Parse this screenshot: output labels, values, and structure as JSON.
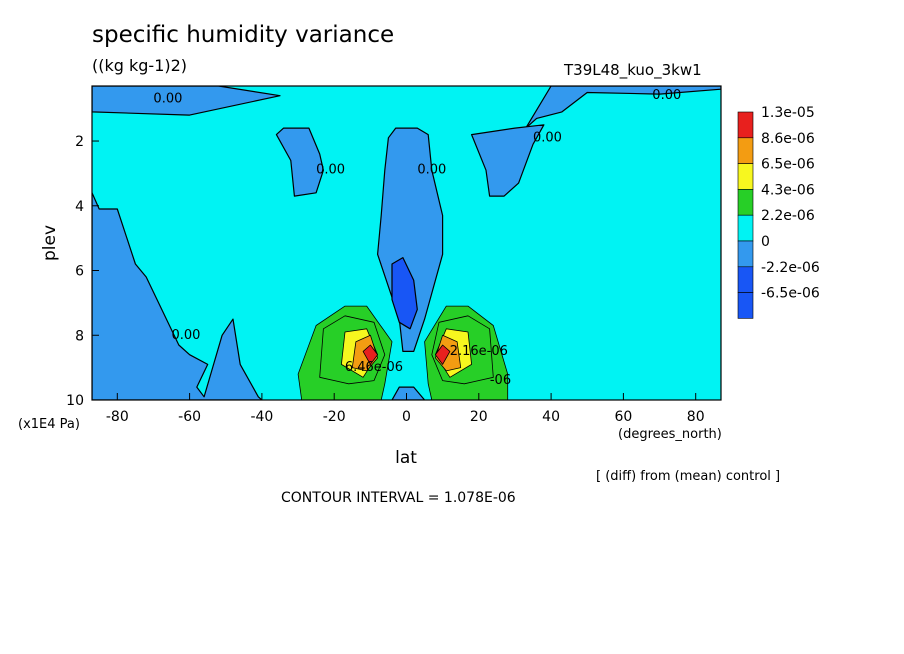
{
  "title": "specific humidity variance",
  "units": "((kg kg-1)2)",
  "run_name": "T39L48_kuo_3kw1",
  "subtitle": "[ (diff) from (mean) control ]",
  "contour_note": "CONTOUR INTERVAL = 1.078E-06",
  "colors": {
    "red": "#e8201e",
    "orange": "#f39c12",
    "yellow": "#f7f71f",
    "green": "#27cf27",
    "cyan": "#00f3f3",
    "blue_light": "#3399ee",
    "blue_dark": "#1856f5"
  },
  "chart_data": {
    "type": "filled-contour",
    "xlabel": "lat",
    "xunits": "(degrees_north)",
    "ylabel": "plev",
    "yunits": "(x1E4 Pa)",
    "xlim": [
      -87,
      87
    ],
    "ylim": [
      10,
      0.3
    ],
    "xticks": [
      -80,
      -60,
      -40,
      -20,
      0,
      20,
      40,
      60,
      80
    ],
    "yticks": [
      2,
      4,
      6,
      8,
      10
    ],
    "legend_position": "right",
    "legend": [
      {
        "label": "1.3e-05",
        "color": "#e8201e"
      },
      {
        "label": "8.6e-06",
        "color": "#f39c12"
      },
      {
        "label": "6.5e-06",
        "color": "#f7f71f"
      },
      {
        "label": "4.3e-06",
        "color": "#27cf27"
      },
      {
        "label": "2.2e-06",
        "color": "#00f3f3"
      },
      {
        "label": "0",
        "color": "#3399ee"
      },
      {
        "label": "-2.2e-06",
        "color": "#1856f5"
      },
      {
        "label": "-6.5e-06",
        "color": ""
      }
    ],
    "contour_labels": [
      {
        "text": "0.00",
        "lat": -66,
        "plev": 0.7
      },
      {
        "text": "0.00",
        "lat": 72,
        "plev": 0.6
      },
      {
        "text": "0.00",
        "lat": 39,
        "plev": 1.9
      },
      {
        "text": "0.00",
        "lat": -21,
        "plev": 2.9
      },
      {
        "text": "0.00",
        "lat": 7,
        "plev": 2.9
      },
      {
        "text": "0.00",
        "lat": -61,
        "plev": 8.0
      },
      {
        "text": "2.16e-06",
        "lat": 20,
        "plev": 8.5
      },
      {
        "text": "6.46e-06",
        "lat": -9,
        "plev": 9.0
      },
      {
        "text": "-06",
        "lat": 26,
        "plev": 9.4
      }
    ],
    "regions": [
      {
        "value": 0,
        "points": [
          [
            -87,
            0.3
          ],
          [
            -87,
            1.1
          ],
          [
            -60,
            1.2
          ],
          [
            -35,
            0.6
          ],
          [
            -52,
            0.3
          ]
        ]
      },
      {
        "value": 0,
        "points": [
          [
            40,
            0.3
          ],
          [
            87,
            0.3
          ],
          [
            87,
            0.4
          ],
          [
            70,
            0.55
          ],
          [
            50,
            0.5
          ],
          [
            43,
            1.1
          ],
          [
            36,
            1.3
          ],
          [
            33,
            1.6
          ]
        ]
      },
      {
        "value": 0,
        "points": [
          [
            -87,
            3.6
          ],
          [
            -85,
            4.1
          ],
          [
            -80,
            4.1
          ],
          [
            -75,
            5.8
          ],
          [
            -72,
            6.2
          ],
          [
            -66,
            7.6
          ],
          [
            -63,
            8.3
          ],
          [
            -60,
            8.6
          ],
          [
            -55,
            8.9
          ],
          [
            -58,
            9.6
          ],
          [
            -56,
            9.9
          ],
          [
            -51,
            8.0
          ],
          [
            -48,
            7.5
          ],
          [
            -46,
            8.9
          ],
          [
            -41,
            9.9
          ],
          [
            -40,
            10
          ],
          [
            -87,
            10
          ]
        ]
      },
      {
        "value": 0,
        "points": [
          [
            -34,
            1.6
          ],
          [
            -27,
            1.6
          ],
          [
            -24,
            2.4
          ],
          [
            -23,
            2.9
          ],
          [
            -25,
            3.6
          ],
          [
            -31,
            3.7
          ],
          [
            -32,
            2.6
          ],
          [
            -36,
            1.8
          ]
        ]
      },
      {
        "value": 0,
        "points": [
          [
            30,
            1.6
          ],
          [
            38,
            1.5
          ],
          [
            35,
            2.1
          ],
          [
            31,
            3.3
          ],
          [
            27,
            3.7
          ],
          [
            23,
            3.7
          ],
          [
            22,
            2.9
          ],
          [
            18,
            1.8
          ]
        ]
      },
      {
        "value": 0,
        "points": [
          [
            -5,
            1.9
          ],
          [
            -3,
            1.6
          ],
          [
            3,
            1.6
          ],
          [
            6,
            1.8
          ],
          [
            7,
            2.9
          ],
          [
            10,
            4.3
          ],
          [
            10,
            5.5
          ],
          [
            5,
            7.5
          ],
          [
            2,
            8.5
          ],
          [
            -1,
            8.5
          ],
          [
            -2,
            7.5
          ],
          [
            -8,
            5.5
          ],
          [
            -7,
            4.3
          ],
          [
            -6,
            2.9
          ]
        ]
      },
      {
        "value": -6.5e-06,
        "points": [
          [
            -4,
            5.8
          ],
          [
            -1,
            5.6
          ],
          [
            2,
            6.3
          ],
          [
            3,
            7.2
          ],
          [
            1,
            7.8
          ],
          [
            -2,
            7.6
          ],
          [
            -4,
            6.9
          ]
        ]
      },
      {
        "value": 2.2e-06,
        "points": [
          [
            -29,
            10
          ],
          [
            -30,
            9.2
          ],
          [
            -25,
            7.7
          ],
          [
            -17,
            7.1
          ],
          [
            -11,
            7.1
          ],
          [
            -4,
            8.2
          ],
          [
            -6,
            9.5
          ],
          [
            -7,
            10
          ]
        ]
      },
      {
        "value": 2.2e-06,
        "points": [
          [
            7,
            10
          ],
          [
            6,
            9.5
          ],
          [
            5,
            8.2
          ],
          [
            11,
            7.1
          ],
          [
            17,
            7.1
          ],
          [
            24,
            7.7
          ],
          [
            28,
            9.2
          ],
          [
            28,
            10
          ]
        ]
      },
      {
        "value": 4.3e-06,
        "points": [
          [
            -24,
            9.3
          ],
          [
            -23,
            7.8
          ],
          [
            -17,
            7.4
          ],
          [
            -9,
            7.6
          ],
          [
            -6,
            8.6
          ],
          [
            -9,
            9.4
          ],
          [
            -16,
            9.5
          ]
        ]
      },
      {
        "value": 4.3e-06,
        "points": [
          [
            7,
            8.6
          ],
          [
            9,
            7.6
          ],
          [
            17,
            7.4
          ],
          [
            23,
            7.8
          ],
          [
            24,
            9.3
          ],
          [
            16,
            9.5
          ],
          [
            10,
            9.4
          ]
        ]
      },
      {
        "value": 6.5e-06,
        "points": [
          [
            -18,
            8.9
          ],
          [
            -17,
            7.9
          ],
          [
            -11,
            7.8
          ],
          [
            -8,
            8.6
          ],
          [
            -12,
            9.3
          ]
        ]
      },
      {
        "value": 6.5e-06,
        "points": [
          [
            8,
            8.6
          ],
          [
            11,
            7.8
          ],
          [
            17,
            7.9
          ],
          [
            18,
            8.9
          ],
          [
            12,
            9.3
          ]
        ]
      },
      {
        "value": 8.6e-06,
        "points": [
          [
            -15,
            9.0
          ],
          [
            -14,
            8.2
          ],
          [
            -10,
            8.0
          ],
          [
            -8,
            8.7
          ],
          [
            -11,
            9.1
          ]
        ]
      },
      {
        "value": 8.6e-06,
        "points": [
          [
            8,
            8.7
          ],
          [
            10,
            8.0
          ],
          [
            14,
            8.2
          ],
          [
            15,
            9.0
          ],
          [
            11,
            9.1
          ]
        ]
      },
      {
        "value": 1.3e-05,
        "points": [
          [
            -12,
            8.5
          ],
          [
            -10,
            8.3
          ],
          [
            -8,
            8.6
          ],
          [
            -10,
            8.9
          ]
        ]
      },
      {
        "value": 1.3e-05,
        "points": [
          [
            8,
            8.6
          ],
          [
            10,
            8.3
          ],
          [
            12,
            8.5
          ],
          [
            10,
            8.9
          ]
        ]
      },
      {
        "value": 0,
        "points": [
          [
            -4,
            10
          ],
          [
            -2,
            9.6
          ],
          [
            2,
            9.6
          ],
          [
            5,
            10
          ]
        ]
      }
    ]
  }
}
